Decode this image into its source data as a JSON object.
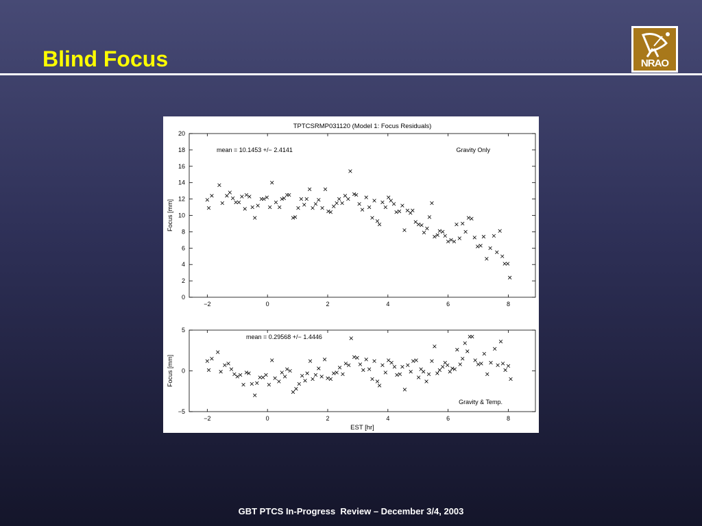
{
  "slide": {
    "title": "Blind Focus",
    "footer": "GBT PTCS In-Progress  Review – December 3/4, 2003",
    "logo_text": "NRAO",
    "title_color": "#ffff00"
  },
  "chart_data": [
    {
      "type": "scatter",
      "title": "TPTCSRMP031120 (Model 1: Focus Residuals)",
      "annotation": "mean = 10.1453 +/− 2.4141",
      "legend_label": "Gravity Only",
      "xlabel": "",
      "ylabel": "Focus [mm]",
      "xlim": [
        -2.6,
        8.9
      ],
      "ylim": [
        0,
        20
      ],
      "xticks": [
        -2,
        0,
        2,
        4,
        6,
        8
      ],
      "yticks": [
        0,
        2,
        4,
        6,
        8,
        10,
        12,
        14,
        16,
        18,
        20
      ],
      "marker": "x",
      "points": [
        [
          -2.0,
          11.9
        ],
        [
          -1.95,
          10.9
        ],
        [
          -1.85,
          12.4
        ],
        [
          -1.6,
          13.7
        ],
        [
          -1.5,
          11.5
        ],
        [
          -1.35,
          12.4
        ],
        [
          -1.25,
          12.8
        ],
        [
          -1.15,
          12.1
        ],
        [
          -1.05,
          11.6
        ],
        [
          -0.95,
          11.6
        ],
        [
          -0.85,
          12.3
        ],
        [
          -0.75,
          10.8
        ],
        [
          -0.7,
          12.5
        ],
        [
          -0.6,
          12.3
        ],
        [
          -0.5,
          11.0
        ],
        [
          -0.42,
          9.7
        ],
        [
          -0.32,
          11.2
        ],
        [
          -0.2,
          12.0
        ],
        [
          -0.12,
          12.0
        ],
        [
          -0.02,
          12.2
        ],
        [
          0.08,
          11.0
        ],
        [
          0.15,
          14.0
        ],
        [
          0.28,
          11.6
        ],
        [
          0.4,
          11.0
        ],
        [
          0.48,
          12.0
        ],
        [
          0.55,
          12.1
        ],
        [
          0.65,
          12.5
        ],
        [
          0.72,
          12.5
        ],
        [
          0.85,
          9.7
        ],
        [
          0.92,
          9.8
        ],
        [
          1.02,
          10.9
        ],
        [
          1.12,
          12.0
        ],
        [
          1.22,
          11.3
        ],
        [
          1.3,
          12.0
        ],
        [
          1.4,
          13.2
        ],
        [
          1.5,
          10.9
        ],
        [
          1.6,
          11.4
        ],
        [
          1.7,
          11.9
        ],
        [
          1.82,
          10.9
        ],
        [
          1.92,
          13.2
        ],
        [
          2.02,
          10.5
        ],
        [
          2.1,
          10.4
        ],
        [
          2.2,
          11.1
        ],
        [
          2.3,
          11.5
        ],
        [
          2.38,
          12.0
        ],
        [
          2.48,
          11.5
        ],
        [
          2.58,
          12.4
        ],
        [
          2.68,
          12.0
        ],
        [
          2.75,
          15.4
        ],
        [
          2.88,
          12.6
        ],
        [
          2.95,
          12.5
        ],
        [
          3.05,
          11.4
        ],
        [
          3.15,
          10.7
        ],
        [
          3.28,
          12.2
        ],
        [
          3.38,
          11.0
        ],
        [
          3.48,
          9.7
        ],
        [
          3.55,
          11.8
        ],
        [
          3.65,
          9.3
        ],
        [
          3.72,
          8.9
        ],
        [
          3.82,
          11.6
        ],
        [
          3.92,
          11.0
        ],
        [
          4.02,
          12.2
        ],
        [
          4.1,
          11.8
        ],
        [
          4.2,
          11.4
        ],
        [
          4.28,
          10.4
        ],
        [
          4.38,
          10.5
        ],
        [
          4.48,
          11.2
        ],
        [
          4.55,
          8.2
        ],
        [
          4.65,
          10.6
        ],
        [
          4.75,
          10.3
        ],
        [
          4.82,
          10.6
        ],
        [
          4.92,
          9.2
        ],
        [
          5.02,
          8.9
        ],
        [
          5.12,
          8.8
        ],
        [
          5.2,
          7.9
        ],
        [
          5.3,
          8.4
        ],
        [
          5.38,
          9.8
        ],
        [
          5.46,
          11.5
        ],
        [
          5.55,
          7.4
        ],
        [
          5.65,
          7.6
        ],
        [
          5.72,
          8.1
        ],
        [
          5.82,
          8.0
        ],
        [
          5.9,
          7.5
        ],
        [
          6.0,
          6.8
        ],
        [
          6.1,
          7.0
        ],
        [
          6.2,
          6.8
        ],
        [
          6.28,
          8.9
        ],
        [
          6.38,
          7.2
        ],
        [
          6.48,
          9.0
        ],
        [
          6.58,
          8.0
        ],
        [
          6.68,
          9.7
        ],
        [
          6.78,
          9.6
        ],
        [
          6.88,
          7.3
        ],
        [
          6.98,
          6.2
        ],
        [
          7.08,
          6.3
        ],
        [
          7.18,
          7.4
        ],
        [
          7.28,
          4.7
        ],
        [
          7.4,
          6.0
        ],
        [
          7.52,
          7.5
        ],
        [
          7.62,
          5.5
        ],
        [
          7.72,
          8.1
        ],
        [
          7.8,
          5.0
        ],
        [
          7.88,
          4.1
        ],
        [
          7.98,
          4.1
        ],
        [
          8.05,
          2.4
        ]
      ]
    },
    {
      "type": "scatter",
      "title": "",
      "annotation": "mean = 0.29568 +/− 1.4446",
      "legend_label": "Gravity & Temp.",
      "xlabel": "EST [hr]",
      "ylabel": "Focus [mm]",
      "xlim": [
        -2.6,
        8.9
      ],
      "ylim": [
        -5,
        5
      ],
      "xticks": [
        -2,
        0,
        2,
        4,
        6,
        8
      ],
      "yticks": [
        -5,
        0,
        5
      ],
      "marker": "x",
      "points": [
        [
          -2.0,
          1.2
        ],
        [
          -1.95,
          0.1
        ],
        [
          -1.85,
          1.5
        ],
        [
          -1.65,
          2.3
        ],
        [
          -1.55,
          -0.1
        ],
        [
          -1.42,
          0.7
        ],
        [
          -1.3,
          0.9
        ],
        [
          -1.2,
          0.2
        ],
        [
          -1.1,
          -0.4
        ],
        [
          -1.0,
          -0.7
        ],
        [
          -0.9,
          -0.5
        ],
        [
          -0.8,
          -1.7
        ],
        [
          -0.7,
          -0.2
        ],
        [
          -0.62,
          -0.3
        ],
        [
          -0.52,
          -1.6
        ],
        [
          -0.42,
          -3.0
        ],
        [
          -0.35,
          -1.5
        ],
        [
          -0.25,
          -0.8
        ],
        [
          -0.15,
          -0.8
        ],
        [
          -0.05,
          -0.5
        ],
        [
          0.05,
          -1.7
        ],
        [
          0.15,
          1.3
        ],
        [
          0.25,
          -0.9
        ],
        [
          0.38,
          -1.3
        ],
        [
          0.48,
          -0.2
        ],
        [
          0.58,
          -0.7
        ],
        [
          0.65,
          0.2
        ],
        [
          0.75,
          0.0
        ],
        [
          0.85,
          -2.6
        ],
        [
          0.95,
          -2.2
        ],
        [
          1.05,
          -1.6
        ],
        [
          1.15,
          -0.6
        ],
        [
          1.25,
          -1.2
        ],
        [
          1.32,
          -0.3
        ],
        [
          1.42,
          1.2
        ],
        [
          1.5,
          -1.0
        ],
        [
          1.6,
          -0.5
        ],
        [
          1.7,
          0.3
        ],
        [
          1.8,
          -0.7
        ],
        [
          1.9,
          1.4
        ],
        [
          2.0,
          -0.9
        ],
        [
          2.1,
          -1.0
        ],
        [
          2.2,
          -0.3
        ],
        [
          2.3,
          -0.2
        ],
        [
          2.4,
          0.4
        ],
        [
          2.5,
          -0.4
        ],
        [
          2.6,
          0.9
        ],
        [
          2.7,
          0.7
        ],
        [
          2.78,
          4.0
        ],
        [
          2.88,
          1.7
        ],
        [
          2.98,
          1.6
        ],
        [
          3.08,
          0.8
        ],
        [
          3.18,
          0.1
        ],
        [
          3.28,
          1.4
        ],
        [
          3.38,
          0.2
        ],
        [
          3.48,
          -1.0
        ],
        [
          3.55,
          1.2
        ],
        [
          3.65,
          -1.3
        ],
        [
          3.72,
          -1.8
        ],
        [
          3.82,
          0.7
        ],
        [
          3.92,
          -0.2
        ],
        [
          4.02,
          1.3
        ],
        [
          4.12,
          1.0
        ],
        [
          4.22,
          0.5
        ],
        [
          4.3,
          -0.5
        ],
        [
          4.4,
          -0.4
        ],
        [
          4.48,
          0.5
        ],
        [
          4.56,
          -2.3
        ],
        [
          4.66,
          0.7
        ],
        [
          4.76,
          -0.1
        ],
        [
          4.84,
          1.2
        ],
        [
          4.94,
          1.3
        ],
        [
          5.02,
          -0.8
        ],
        [
          5.1,
          0.2
        ],
        [
          5.18,
          -0.1
        ],
        [
          5.28,
          -1.3
        ],
        [
          5.36,
          -0.4
        ],
        [
          5.46,
          1.2
        ],
        [
          5.55,
          3.0
        ],
        [
          5.64,
          -0.3
        ],
        [
          5.72,
          0.1
        ],
        [
          5.82,
          0.5
        ],
        [
          5.9,
          1.0
        ],
        [
          5.98,
          0.7
        ],
        [
          6.06,
          -0.1
        ],
        [
          6.14,
          0.3
        ],
        [
          6.22,
          0.2
        ],
        [
          6.3,
          2.6
        ],
        [
          6.4,
          0.8
        ],
        [
          6.48,
          1.5
        ],
        [
          6.56,
          3.4
        ],
        [
          6.64,
          2.4
        ],
        [
          6.72,
          4.2
        ],
        [
          6.8,
          4.2
        ],
        [
          6.9,
          1.3
        ],
        [
          7.0,
          0.8
        ],
        [
          7.1,
          0.9
        ],
        [
          7.2,
          2.1
        ],
        [
          7.3,
          -0.4
        ],
        [
          7.42,
          1.0
        ],
        [
          7.55,
          2.7
        ],
        [
          7.65,
          0.7
        ],
        [
          7.75,
          3.6
        ],
        [
          7.82,
          0.9
        ],
        [
          7.9,
          0.1
        ],
        [
          8.0,
          0.6
        ],
        [
          8.08,
          -1.0
        ]
      ]
    }
  ]
}
